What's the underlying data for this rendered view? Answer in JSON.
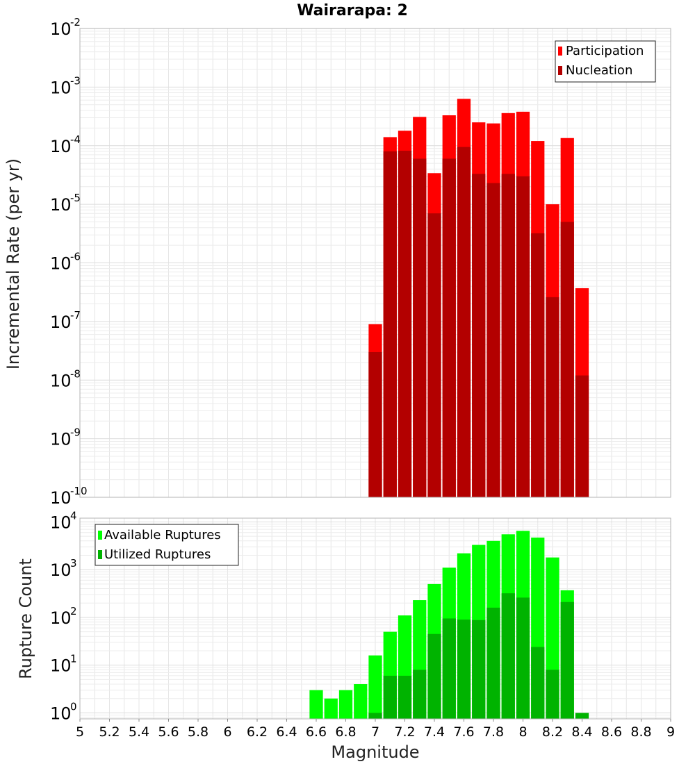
{
  "chart_data": [
    {
      "type": "bar",
      "title": "Wairarapa: 2",
      "ylabel": "Incremental Rate (per yr)",
      "xlabel": "",
      "xlim": [
        5,
        9
      ],
      "ylim": [
        1e-10,
        0.01
      ],
      "yscale": "log",
      "y_tick_exponents": [
        -10,
        -9,
        -8,
        -7,
        -6,
        -5,
        -4,
        -3,
        -2
      ],
      "grid": true,
      "legend_position": "top-right",
      "bin_width": 0.1,
      "x": [
        7.0,
        7.1,
        7.2,
        7.3,
        7.4,
        7.5,
        7.6,
        7.7,
        7.8,
        7.9,
        8.0,
        8.1,
        8.2,
        8.3,
        8.4
      ],
      "series": [
        {
          "name": "Participation",
          "color": "#ff0000",
          "values": [
            9e-08,
            0.00014,
            0.00018,
            0.00031,
            3.4e-05,
            0.00033,
            0.00063,
            0.00025,
            0.00024,
            0.00036,
            0.00038,
            0.00012,
            1e-05,
            0.000135,
            3.7e-07
          ]
        },
        {
          "name": "Nucleation",
          "color": "#b30000",
          "values": [
            3e-08,
            8e-05,
            8.2e-05,
            6e-05,
            7e-06,
            6e-05,
            9.5e-05,
            3.3e-05,
            2.3e-05,
            3.3e-05,
            3e-05,
            3.2e-06,
            2.6e-07,
            5e-06,
            1.2e-08
          ]
        }
      ]
    },
    {
      "type": "bar",
      "title": "",
      "ylabel": "Rupture Count",
      "xlabel": "Magnitude",
      "xlim": [
        5,
        9
      ],
      "ylim": [
        0.75,
        12000
      ],
      "yscale": "log",
      "y_tick_exponents": [
        0,
        1,
        2,
        3,
        4
      ],
      "x_ticks": [
        "5",
        "5.2",
        "5.4",
        "5.6",
        "5.8",
        "6",
        "6.2",
        "6.4",
        "6.6",
        "6.8",
        "7",
        "7.2",
        "7.4",
        "7.6",
        "7.8",
        "8",
        "8.2",
        "8.4",
        "8.6",
        "8.8",
        "9"
      ],
      "grid": true,
      "legend_position": "top-left",
      "bin_width": 0.1,
      "x": [
        6.6,
        6.7,
        6.8,
        6.9,
        7.0,
        7.1,
        7.2,
        7.3,
        7.4,
        7.5,
        7.6,
        7.7,
        7.8,
        7.9,
        8.0,
        8.1,
        8.2,
        8.3,
        8.4
      ],
      "series": [
        {
          "name": "Available Ruptures",
          "color": "#00ff00",
          "values": [
            3,
            2,
            3,
            4,
            16,
            50,
            110,
            230,
            500,
            1100,
            2200,
            3300,
            4000,
            5500,
            6500,
            4700,
            1800,
            370,
            0
          ]
        },
        {
          "name": "Utilized Ruptures",
          "color": "#00b300",
          "values": [
            0,
            0,
            0,
            0,
            1,
            6,
            6,
            8,
            45,
            95,
            90,
            88,
            160,
            320,
            260,
            24,
            8,
            210,
            1
          ]
        }
      ]
    }
  ]
}
